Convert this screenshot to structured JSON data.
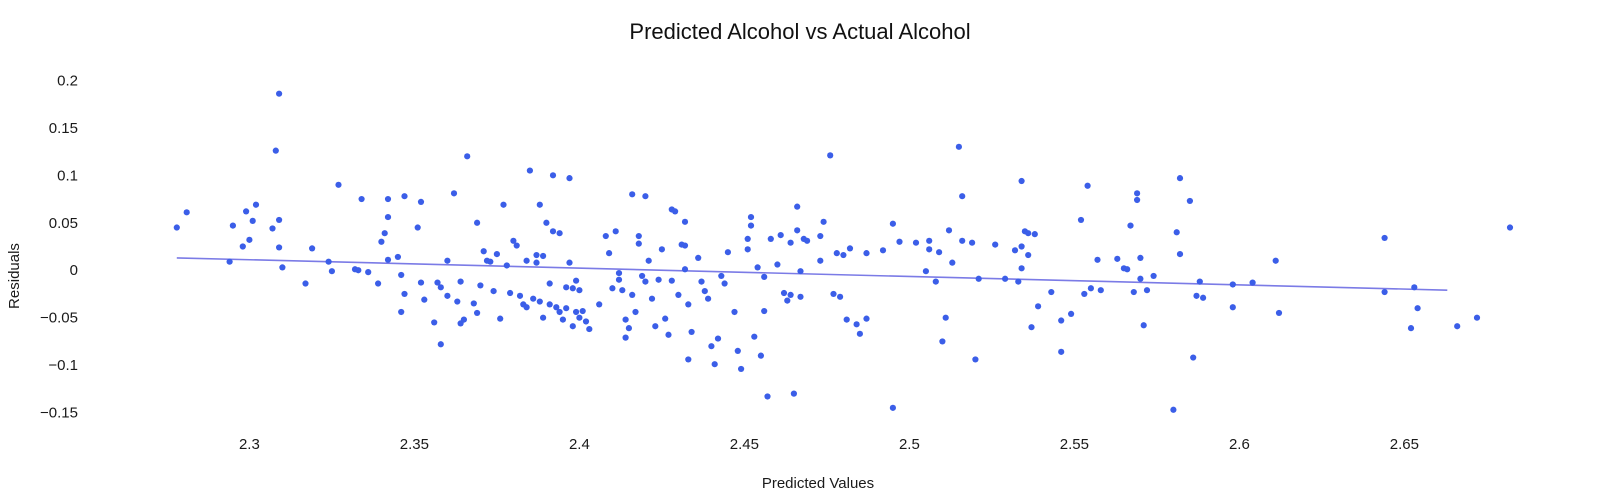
{
  "chart_data": {
    "type": "scatter",
    "title": "Predicted Alcohol vs Actual Alcohol",
    "xlabel": "Predicted Values",
    "ylabel": "Residuals",
    "xlim": [
      2.272,
      2.672
    ],
    "ylim": [
      -0.162,
      0.212
    ],
    "xticks": [
      2.3,
      2.35,
      2.4,
      2.45,
      2.5,
      2.55,
      2.6,
      2.65
    ],
    "xtick_labels": [
      "2.3",
      "2.35",
      "2.4",
      "2.45",
      "2.5",
      "2.55",
      "2.6",
      "2.65"
    ],
    "yticks": [
      0.2,
      0.15,
      0.1,
      0.05,
      0,
      -0.05,
      -0.1,
      -0.15
    ],
    "ytick_labels": [
      "0.2",
      "0.15",
      "0.1",
      "0.05",
      "0",
      "−0.05",
      "−0.1",
      "−0.15"
    ],
    "grid": false,
    "point_color": "#3b5ee8",
    "line_color": "#7b7be6",
    "trend_line": {
      "x": [
        2.278,
        2.663
      ],
      "y": [
        0.013,
        -0.021
      ]
    },
    "points": [
      {
        "x": 2.278,
        "y": 0.045
      },
      {
        "x": 2.281,
        "y": 0.061
      },
      {
        "x": 2.294,
        "y": 0.009
      },
      {
        "x": 2.295,
        "y": 0.047
      },
      {
        "x": 2.298,
        "y": 0.025
      },
      {
        "x": 2.299,
        "y": 0.062
      },
      {
        "x": 2.3,
        "y": 0.032
      },
      {
        "x": 2.301,
        "y": 0.052
      },
      {
        "x": 2.302,
        "y": 0.069
      },
      {
        "x": 2.307,
        "y": 0.044
      },
      {
        "x": 2.308,
        "y": 0.126
      },
      {
        "x": 2.309,
        "y": 0.053
      },
      {
        "x": 2.309,
        "y": 0.186
      },
      {
        "x": 2.31,
        "y": 0.003
      },
      {
        "x": 2.309,
        "y": 0.024
      },
      {
        "x": 2.317,
        "y": -0.014
      },
      {
        "x": 2.319,
        "y": 0.023
      },
      {
        "x": 2.324,
        "y": 0.009
      },
      {
        "x": 2.325,
        "y": -0.001
      },
      {
        "x": 2.327,
        "y": 0.09
      },
      {
        "x": 2.332,
        "y": 0.001
      },
      {
        "x": 2.333,
        "y": 0.0
      },
      {
        "x": 2.334,
        "y": 0.075
      },
      {
        "x": 2.336,
        "y": -0.002
      },
      {
        "x": 2.339,
        "y": -0.014
      },
      {
        "x": 2.34,
        "y": 0.03
      },
      {
        "x": 2.341,
        "y": 0.039
      },
      {
        "x": 2.342,
        "y": 0.011
      },
      {
        "x": 2.342,
        "y": 0.056
      },
      {
        "x": 2.342,
        "y": 0.075
      },
      {
        "x": 2.345,
        "y": 0.014
      },
      {
        "x": 2.346,
        "y": -0.005
      },
      {
        "x": 2.346,
        "y": -0.044
      },
      {
        "x": 2.347,
        "y": 0.078
      },
      {
        "x": 2.347,
        "y": -0.025
      },
      {
        "x": 2.351,
        "y": 0.045
      },
      {
        "x": 2.352,
        "y": 0.072
      },
      {
        "x": 2.352,
        "y": -0.013
      },
      {
        "x": 2.353,
        "y": -0.031
      },
      {
        "x": 2.356,
        "y": -0.055
      },
      {
        "x": 2.357,
        "y": -0.013
      },
      {
        "x": 2.358,
        "y": -0.078
      },
      {
        "x": 2.358,
        "y": -0.018
      },
      {
        "x": 2.36,
        "y": 0.01
      },
      {
        "x": 2.36,
        "y": -0.027
      },
      {
        "x": 2.362,
        "y": 0.081
      },
      {
        "x": 2.363,
        "y": -0.033
      },
      {
        "x": 2.364,
        "y": -0.012
      },
      {
        "x": 2.364,
        "y": -0.056
      },
      {
        "x": 2.365,
        "y": -0.052
      },
      {
        "x": 2.366,
        "y": 0.12
      },
      {
        "x": 2.368,
        "y": -0.035
      },
      {
        "x": 2.369,
        "y": 0.05
      },
      {
        "x": 2.369,
        "y": -0.045
      },
      {
        "x": 2.37,
        "y": -0.016
      },
      {
        "x": 2.371,
        "y": 0.02
      },
      {
        "x": 2.372,
        "y": 0.01
      },
      {
        "x": 2.373,
        "y": 0.009
      },
      {
        "x": 2.374,
        "y": -0.022
      },
      {
        "x": 2.375,
        "y": 0.017
      },
      {
        "x": 2.376,
        "y": -0.051
      },
      {
        "x": 2.377,
        "y": 0.069
      },
      {
        "x": 2.378,
        "y": 0.005
      },
      {
        "x": 2.379,
        "y": -0.024
      },
      {
        "x": 2.38,
        "y": 0.031
      },
      {
        "x": 2.381,
        "y": 0.026
      },
      {
        "x": 2.382,
        "y": -0.027
      },
      {
        "x": 2.383,
        "y": -0.036
      },
      {
        "x": 2.384,
        "y": 0.01
      },
      {
        "x": 2.384,
        "y": -0.039
      },
      {
        "x": 2.385,
        "y": 0.105
      },
      {
        "x": 2.386,
        "y": -0.03
      },
      {
        "x": 2.387,
        "y": 0.008
      },
      {
        "x": 2.387,
        "y": 0.016
      },
      {
        "x": 2.388,
        "y": 0.069
      },
      {
        "x": 2.388,
        "y": -0.033
      },
      {
        "x": 2.389,
        "y": 0.015
      },
      {
        "x": 2.389,
        "y": -0.05
      },
      {
        "x": 2.39,
        "y": 0.05
      },
      {
        "x": 2.391,
        "y": -0.014
      },
      {
        "x": 2.391,
        "y": -0.036
      },
      {
        "x": 2.392,
        "y": 0.1
      },
      {
        "x": 2.392,
        "y": 0.041
      },
      {
        "x": 2.393,
        "y": -0.039
      },
      {
        "x": 2.394,
        "y": 0.039
      },
      {
        "x": 2.394,
        "y": -0.044
      },
      {
        "x": 2.395,
        "y": -0.052
      },
      {
        "x": 2.396,
        "y": -0.018
      },
      {
        "x": 2.396,
        "y": -0.04
      },
      {
        "x": 2.397,
        "y": 0.097
      },
      {
        "x": 2.397,
        "y": 0.008
      },
      {
        "x": 2.398,
        "y": -0.019
      },
      {
        "x": 2.398,
        "y": -0.059
      },
      {
        "x": 2.399,
        "y": -0.011
      },
      {
        "x": 2.399,
        "y": -0.044
      },
      {
        "x": 2.4,
        "y": -0.021
      },
      {
        "x": 2.4,
        "y": -0.05
      },
      {
        "x": 2.401,
        "y": -0.043
      },
      {
        "x": 2.402,
        "y": -0.054
      },
      {
        "x": 2.403,
        "y": -0.062
      },
      {
        "x": 2.406,
        "y": -0.036
      },
      {
        "x": 2.408,
        "y": 0.036
      },
      {
        "x": 2.409,
        "y": 0.018
      },
      {
        "x": 2.41,
        "y": -0.019
      },
      {
        "x": 2.411,
        "y": 0.041
      },
      {
        "x": 2.412,
        "y": -0.003
      },
      {
        "x": 2.412,
        "y": -0.01
      },
      {
        "x": 2.413,
        "y": -0.021
      },
      {
        "x": 2.414,
        "y": -0.052
      },
      {
        "x": 2.414,
        "y": -0.071
      },
      {
        "x": 2.415,
        "y": -0.061
      },
      {
        "x": 2.416,
        "y": 0.08
      },
      {
        "x": 2.416,
        "y": -0.026
      },
      {
        "x": 2.417,
        "y": -0.044
      },
      {
        "x": 2.418,
        "y": 0.028
      },
      {
        "x": 2.418,
        "y": 0.036
      },
      {
        "x": 2.419,
        "y": -0.006
      },
      {
        "x": 2.42,
        "y": -0.012
      },
      {
        "x": 2.42,
        "y": 0.078
      },
      {
        "x": 2.421,
        "y": 0.01
      },
      {
        "x": 2.422,
        "y": -0.03
      },
      {
        "x": 2.423,
        "y": -0.059
      },
      {
        "x": 2.424,
        "y": -0.01
      },
      {
        "x": 2.425,
        "y": 0.022
      },
      {
        "x": 2.426,
        "y": -0.051
      },
      {
        "x": 2.427,
        "y": -0.068
      },
      {
        "x": 2.428,
        "y": 0.064
      },
      {
        "x": 2.428,
        "y": -0.011
      },
      {
        "x": 2.429,
        "y": 0.062
      },
      {
        "x": 2.43,
        "y": -0.026
      },
      {
        "x": 2.431,
        "y": 0.027
      },
      {
        "x": 2.432,
        "y": 0.026
      },
      {
        "x": 2.432,
        "y": 0.051
      },
      {
        "x": 2.432,
        "y": 0.001
      },
      {
        "x": 2.433,
        "y": -0.036
      },
      {
        "x": 2.433,
        "y": -0.094
      },
      {
        "x": 2.434,
        "y": -0.065
      },
      {
        "x": 2.436,
        "y": 0.013
      },
      {
        "x": 2.437,
        "y": -0.012
      },
      {
        "x": 2.438,
        "y": -0.022
      },
      {
        "x": 2.439,
        "y": -0.03
      },
      {
        "x": 2.44,
        "y": -0.08
      },
      {
        "x": 2.441,
        "y": -0.099
      },
      {
        "x": 2.442,
        "y": -0.072
      },
      {
        "x": 2.443,
        "y": -0.006
      },
      {
        "x": 2.444,
        "y": -0.014
      },
      {
        "x": 2.445,
        "y": 0.019
      },
      {
        "x": 2.447,
        "y": -0.044
      },
      {
        "x": 2.448,
        "y": -0.085
      },
      {
        "x": 2.449,
        "y": -0.104
      },
      {
        "x": 2.451,
        "y": 0.022
      },
      {
        "x": 2.451,
        "y": 0.033
      },
      {
        "x": 2.452,
        "y": 0.056
      },
      {
        "x": 2.452,
        "y": 0.047
      },
      {
        "x": 2.453,
        "y": -0.07
      },
      {
        "x": 2.454,
        "y": 0.003
      },
      {
        "x": 2.455,
        "y": -0.09
      },
      {
        "x": 2.456,
        "y": -0.043
      },
      {
        "x": 2.456,
        "y": -0.007
      },
      {
        "x": 2.457,
        "y": -0.133
      },
      {
        "x": 2.458,
        "y": 0.033
      },
      {
        "x": 2.46,
        "y": 0.006
      },
      {
        "x": 2.461,
        "y": 0.037
      },
      {
        "x": 2.462,
        "y": -0.024
      },
      {
        "x": 2.463,
        "y": -0.032
      },
      {
        "x": 2.464,
        "y": -0.026
      },
      {
        "x": 2.464,
        "y": 0.029
      },
      {
        "x": 2.465,
        "y": -0.13
      },
      {
        "x": 2.466,
        "y": 0.042
      },
      {
        "x": 2.466,
        "y": 0.067
      },
      {
        "x": 2.467,
        "y": -0.028
      },
      {
        "x": 2.467,
        "y": -0.001
      },
      {
        "x": 2.468,
        "y": 0.033
      },
      {
        "x": 2.469,
        "y": 0.031
      },
      {
        "x": 2.473,
        "y": 0.01
      },
      {
        "x": 2.473,
        "y": 0.036
      },
      {
        "x": 2.474,
        "y": 0.051
      },
      {
        "x": 2.476,
        "y": 0.121
      },
      {
        "x": 2.477,
        "y": -0.025
      },
      {
        "x": 2.478,
        "y": 0.018
      },
      {
        "x": 2.479,
        "y": -0.028
      },
      {
        "x": 2.48,
        "y": 0.016
      },
      {
        "x": 2.481,
        "y": -0.052
      },
      {
        "x": 2.482,
        "y": 0.023
      },
      {
        "x": 2.484,
        "y": -0.057
      },
      {
        "x": 2.485,
        "y": -0.067
      },
      {
        "x": 2.487,
        "y": 0.018
      },
      {
        "x": 2.487,
        "y": -0.051
      },
      {
        "x": 2.492,
        "y": 0.021
      },
      {
        "x": 2.495,
        "y": 0.049
      },
      {
        "x": 2.495,
        "y": -0.145
      },
      {
        "x": 2.497,
        "y": 0.03
      },
      {
        "x": 2.502,
        "y": 0.029
      },
      {
        "x": 2.505,
        "y": -0.001
      },
      {
        "x": 2.506,
        "y": 0.031
      },
      {
        "x": 2.506,
        "y": 0.022
      },
      {
        "x": 2.508,
        "y": -0.012
      },
      {
        "x": 2.509,
        "y": 0.019
      },
      {
        "x": 2.51,
        "y": -0.075
      },
      {
        "x": 2.511,
        "y": -0.05
      },
      {
        "x": 2.512,
        "y": 0.042
      },
      {
        "x": 2.513,
        "y": 0.008
      },
      {
        "x": 2.515,
        "y": 0.13
      },
      {
        "x": 2.516,
        "y": 0.078
      },
      {
        "x": 2.516,
        "y": 0.031
      },
      {
        "x": 2.519,
        "y": 0.029
      },
      {
        "x": 2.52,
        "y": -0.094
      },
      {
        "x": 2.521,
        "y": -0.009
      },
      {
        "x": 2.526,
        "y": 0.027
      },
      {
        "x": 2.529,
        "y": -0.009
      },
      {
        "x": 2.532,
        "y": 0.021
      },
      {
        "x": 2.533,
        "y": -0.012
      },
      {
        "x": 2.534,
        "y": 0.094
      },
      {
        "x": 2.534,
        "y": 0.025
      },
      {
        "x": 2.534,
        "y": 0.002
      },
      {
        "x": 2.535,
        "y": 0.041
      },
      {
        "x": 2.536,
        "y": 0.016
      },
      {
        "x": 2.536,
        "y": 0.039
      },
      {
        "x": 2.537,
        "y": -0.06
      },
      {
        "x": 2.538,
        "y": 0.038
      },
      {
        "x": 2.539,
        "y": -0.038
      },
      {
        "x": 2.543,
        "y": -0.023
      },
      {
        "x": 2.546,
        "y": -0.053
      },
      {
        "x": 2.546,
        "y": -0.086
      },
      {
        "x": 2.549,
        "y": -0.046
      },
      {
        "x": 2.552,
        "y": 0.053
      },
      {
        "x": 2.553,
        "y": -0.025
      },
      {
        "x": 2.554,
        "y": 0.089
      },
      {
        "x": 2.555,
        "y": -0.019
      },
      {
        "x": 2.557,
        "y": 0.011
      },
      {
        "x": 2.558,
        "y": -0.021
      },
      {
        "x": 2.563,
        "y": 0.012
      },
      {
        "x": 2.565,
        "y": 0.002
      },
      {
        "x": 2.566,
        "y": 0.001
      },
      {
        "x": 2.567,
        "y": 0.047
      },
      {
        "x": 2.568,
        "y": -0.023
      },
      {
        "x": 2.569,
        "y": 0.081
      },
      {
        "x": 2.569,
        "y": 0.074
      },
      {
        "x": 2.57,
        "y": 0.013
      },
      {
        "x": 2.57,
        "y": -0.009
      },
      {
        "x": 2.571,
        "y": -0.058
      },
      {
        "x": 2.572,
        "y": -0.021
      },
      {
        "x": 2.574,
        "y": -0.006
      },
      {
        "x": 2.58,
        "y": -0.147
      },
      {
        "x": 2.581,
        "y": 0.04
      },
      {
        "x": 2.582,
        "y": 0.017
      },
      {
        "x": 2.582,
        "y": 0.097
      },
      {
        "x": 2.585,
        "y": 0.073
      },
      {
        "x": 2.586,
        "y": -0.092
      },
      {
        "x": 2.587,
        "y": -0.027
      },
      {
        "x": 2.588,
        "y": -0.012
      },
      {
        "x": 2.589,
        "y": -0.029
      },
      {
        "x": 2.598,
        "y": -0.039
      },
      {
        "x": 2.598,
        "y": -0.015
      },
      {
        "x": 2.604,
        "y": -0.013
      },
      {
        "x": 2.611,
        "y": 0.01
      },
      {
        "x": 2.612,
        "y": -0.045
      },
      {
        "x": 2.644,
        "y": 0.034
      },
      {
        "x": 2.644,
        "y": -0.023
      },
      {
        "x": 2.652,
        "y": -0.061
      },
      {
        "x": 2.653,
        "y": -0.018
      },
      {
        "x": 2.654,
        "y": -0.04
      },
      {
        "x": 2.666,
        "y": -0.059
      },
      {
        "x": 2.672,
        "y": -0.05
      },
      {
        "x": 2.682,
        "y": 0.045
      }
    ]
  }
}
